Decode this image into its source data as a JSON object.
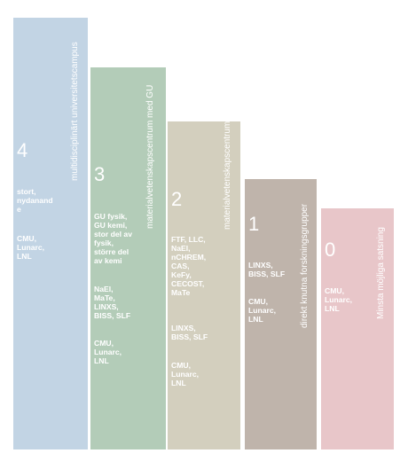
{
  "bars": [
    {
      "level": "4",
      "label": "multidisciplinärt universitetscampus",
      "color": "#c2d4e4",
      "groups": [
        "stort,\nnydanand\ne",
        "CMU,\nLunarc,\nLNL"
      ]
    },
    {
      "level": "3",
      "label": "materialvetenskapscentrum med GU",
      "color": "#b3ccb8",
      "groups": [
        "GU fysik,\nGU kemi,\nstor del av\nfysik,\nstörre del\nav kemi",
        "NaEl,\nMaTe,\nLINXS,\nBISS, SLF",
        "CMU,\nLunarc,\nLNL"
      ]
    },
    {
      "level": "2",
      "label": "materialvetenskapscentrum",
      "color": "#d3cfbe",
      "groups": [
        "FTF, LLC,\nNaEl,\nnCHREM,\nCAS,\nKeFy,\nCECOST,\nMaTe",
        "LINXS,\nBISS, SLF",
        "CMU,\nLunarc,\nLNL"
      ]
    },
    {
      "level": "1",
      "label": "direkt knutna forskningsgrupper",
      "color": "#bfb4ab",
      "groups": [
        "LINXS,\nBISS, SLF",
        "CMU,\nLunarc,\nLNL"
      ]
    },
    {
      "level": "0",
      "label": "Minsta möjliga satsning",
      "color": "#e8c6c9",
      "groups": [
        "CMU,\nLunarc,\nLNL"
      ]
    }
  ]
}
